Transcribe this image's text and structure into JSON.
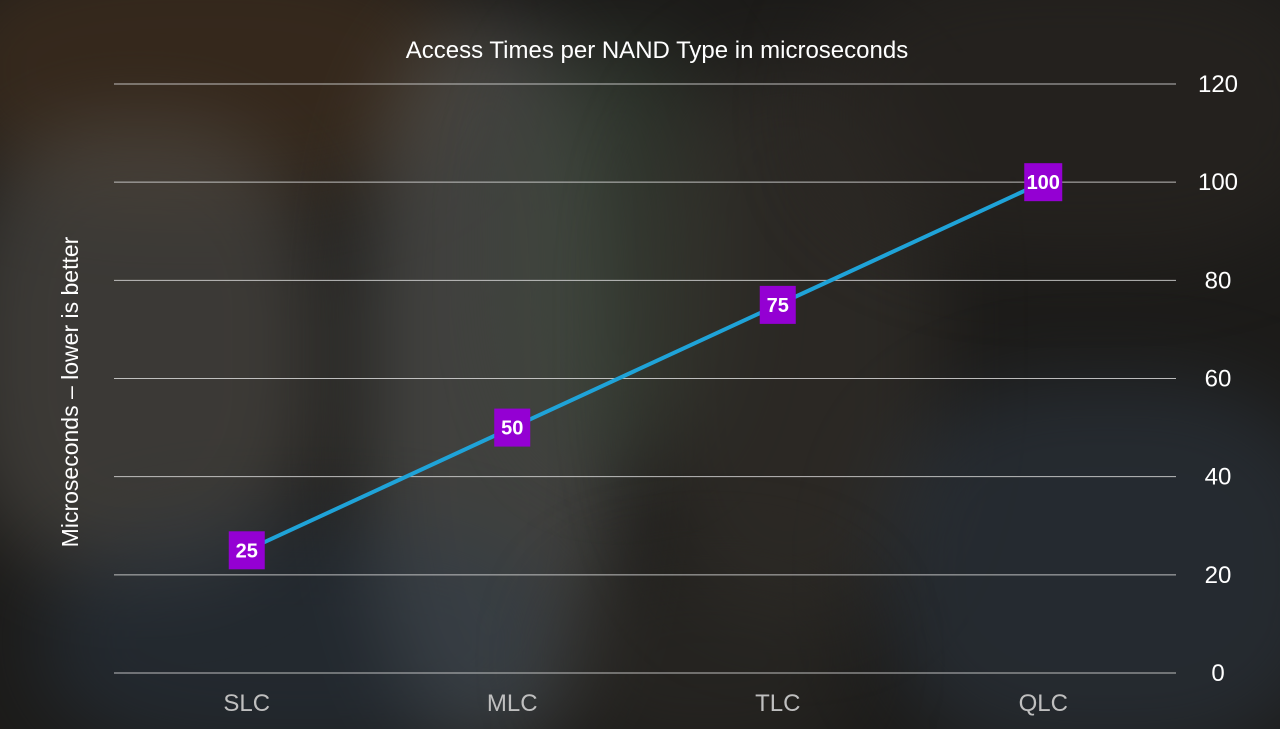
{
  "chart_data": {
    "type": "line",
    "title": "Access Times per NAND Type in microseconds",
    "ylabel": "Microseconds – lower is better",
    "xlabel": "",
    "categories": [
      "SLC",
      "MLC",
      "TLC",
      "QLC"
    ],
    "series": [
      {
        "values": [
          25,
          50,
          75,
          100
        ],
        "color": "#1fa3d8",
        "marker_color": "#9400d3"
      }
    ],
    "ylim": [
      0,
      120
    ],
    "yticks": [
      0,
      20,
      40,
      60,
      80,
      100,
      120
    ],
    "y_axis_side": "right",
    "grid": true,
    "legend": "none"
  }
}
